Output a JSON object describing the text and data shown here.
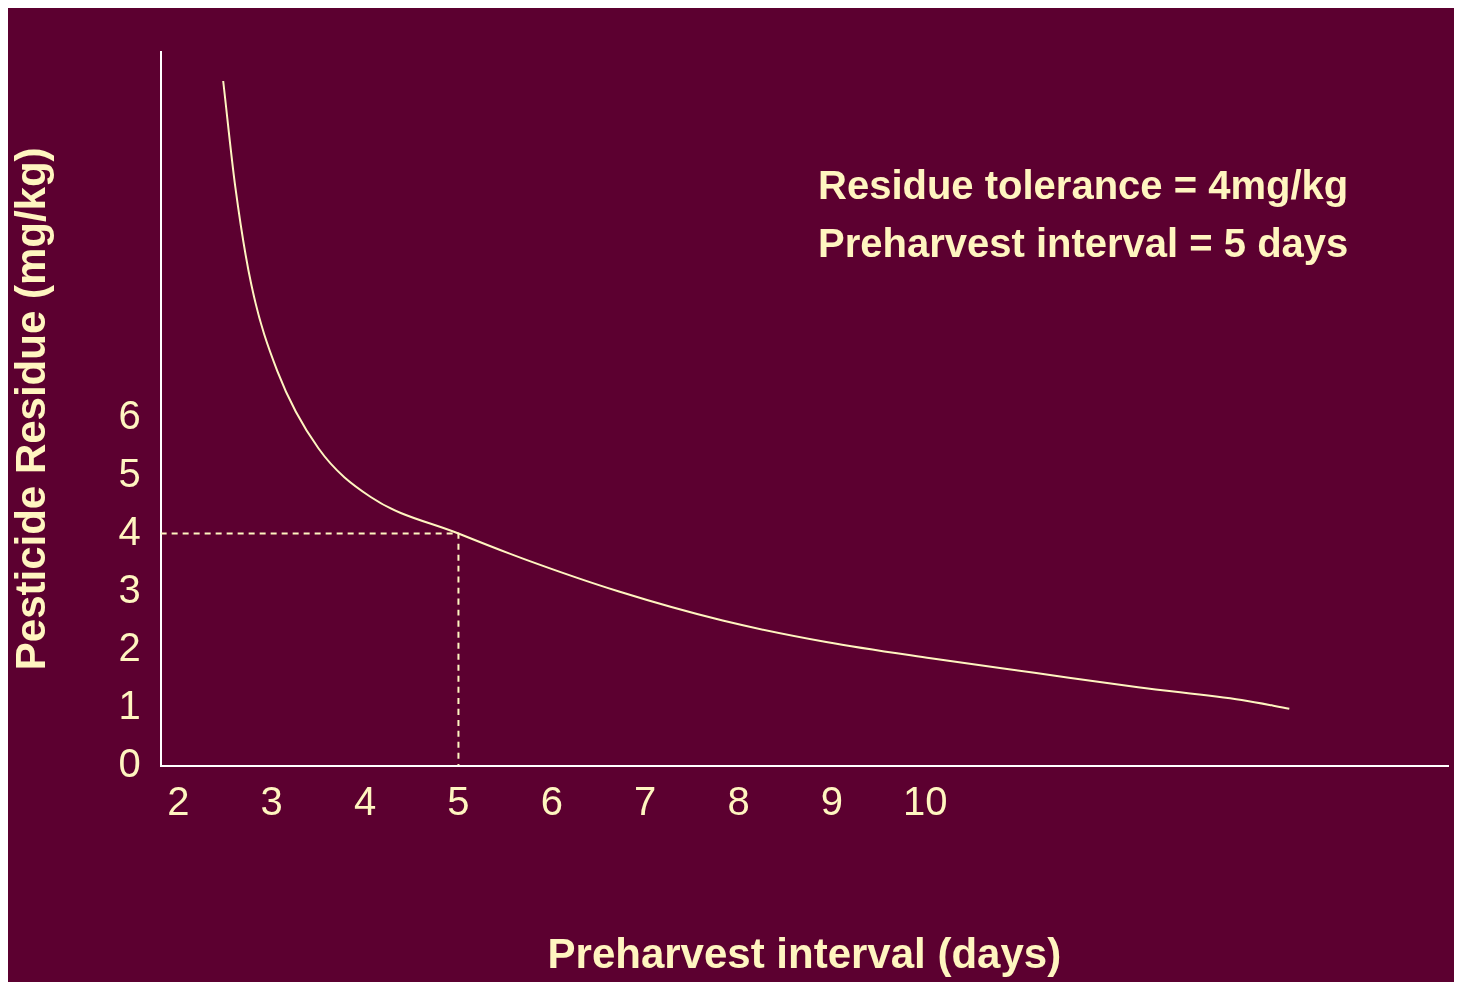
{
  "chart_data": {
    "type": "line",
    "xlabel": "Preharvest interval (days)",
    "ylabel": "Pesticide Residue (mg/kg)",
    "annotations": [
      "Residue tolerance = 4mg/kg",
      "Preharvest interval = 5 days"
    ],
    "xlim": [
      1.81,
      15.6
    ],
    "xticks": [
      2,
      3,
      4,
      5,
      6,
      7,
      8,
      9,
      10
    ],
    "ylim": [
      0,
      12.3
    ],
    "yticks": [
      0,
      1,
      2,
      3,
      4,
      5,
      6
    ],
    "grid": false,
    "legend": false,
    "marker": "none",
    "series": [
      {
        "color": "#fff5c0",
        "line_style": "solid",
        "x": [
          2.48,
          2.61,
          2.78,
          3.06,
          3.5,
          4.06,
          5,
          5.72,
          6.72,
          7.83,
          8.94,
          10.06,
          11.17,
          12.28,
          13.39,
          13.9
        ],
        "values": [
          11.8,
          9.97,
          8.3,
          6.8,
          5.47,
          4.63,
          4,
          3.55,
          3.0,
          2.5,
          2.13,
          1.85,
          1.6,
          1.35,
          1.13,
          0.98
        ]
      },
      {
        "color": "#fff5c0",
        "line_style": "dashed",
        "x": [
          1.81,
          5,
          5
        ],
        "values": [
          4,
          4,
          0
        ]
      }
    ]
  }
}
